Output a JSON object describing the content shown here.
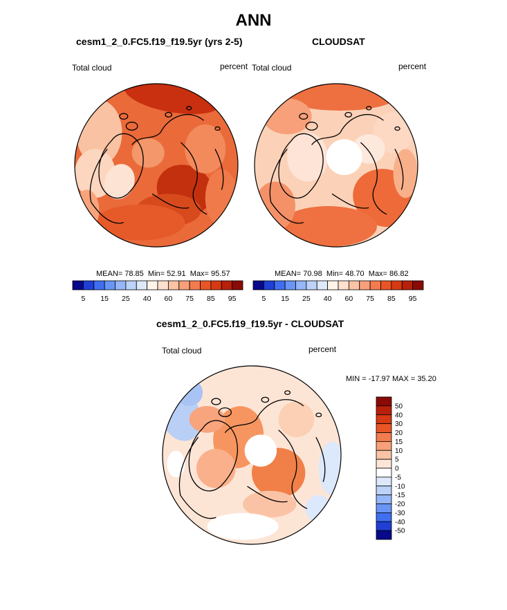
{
  "title": "ANN",
  "panels": [
    {
      "title": "cesm1_2_0.FC5.f19_f19.5yr (yrs 2-5)",
      "variable": "Total cloud",
      "units": "percent",
      "stats": {
        "MEAN": "78.85",
        "Min": "52.91",
        "Max": "95.57"
      }
    },
    {
      "title": "CLOUDSAT",
      "variable": "Total cloud",
      "units": "percent",
      "stats": {
        "MEAN": "70.98",
        "Min": "48.70",
        "Max": "86.82"
      }
    },
    {
      "title": "cesm1_2_0.FC5.f19_f19.5yr - CLOUDSAT",
      "variable": "Total cloud",
      "units": "percent",
      "stats_text": "MIN = -17.97 MAX =  35.20"
    }
  ],
  "chart_data": [
    {
      "type": "heatmap",
      "projection": "north polar stereographic",
      "title": "cesm1_2_0.FC5.f19_f19.5yr (yrs 2-5)",
      "variable": "Total cloud",
      "units": "percent",
      "mean": 78.85,
      "min": 52.91,
      "max": 95.57,
      "colorbar": {
        "orientation": "horizontal",
        "labels": [
          "5",
          "15",
          "25",
          "40",
          "60",
          "75",
          "85",
          "95"
        ],
        "levels": [
          5,
          10,
          15,
          20,
          25,
          30,
          40,
          50,
          60,
          70,
          75,
          80,
          85,
          90,
          95
        ],
        "colors": [
          "#08088a",
          "#1f3fd6",
          "#3f6ff0",
          "#6a95f7",
          "#95b6f8",
          "#bcd2f8",
          "#dde9fb",
          "#fff3ea",
          "#fde0ce",
          "#fbc3a6",
          "#f8a07a",
          "#f37c4f",
          "#ea5526",
          "#d73a12",
          "#b8200b",
          "#8a0a06"
        ]
      }
    },
    {
      "type": "heatmap",
      "projection": "north polar stereographic",
      "title": "CLOUDSAT",
      "variable": "Total cloud",
      "units": "percent",
      "mean": 70.98,
      "min": 48.7,
      "max": 86.82,
      "colorbar": {
        "orientation": "horizontal",
        "labels": [
          "5",
          "15",
          "25",
          "40",
          "60",
          "75",
          "85",
          "95"
        ],
        "levels": [
          5,
          10,
          15,
          20,
          25,
          30,
          40,
          50,
          60,
          70,
          75,
          80,
          85,
          90,
          95
        ],
        "colors": [
          "#08088a",
          "#1f3fd6",
          "#3f6ff0",
          "#6a95f7",
          "#95b6f8",
          "#bcd2f8",
          "#dde9fb",
          "#fff3ea",
          "#fde0ce",
          "#fbc3a6",
          "#f8a07a",
          "#f37c4f",
          "#ea5526",
          "#d73a12",
          "#b8200b",
          "#8a0a06"
        ]
      }
    },
    {
      "type": "heatmap",
      "projection": "north polar stereographic",
      "title": "cesm1_2_0.FC5.f19_f19.5yr - CLOUDSAT",
      "variable": "Total cloud",
      "units": "percent",
      "min": -17.97,
      "max": 35.2,
      "colorbar": {
        "orientation": "vertical",
        "labels": [
          "50",
          "40",
          "30",
          "20",
          "15",
          "10",
          "5",
          "0",
          "-5",
          "-10",
          "-15",
          "-20",
          "-30",
          "-40",
          "-50"
        ],
        "colors": [
          "#8a0a06",
          "#b8200b",
          "#d73a12",
          "#ea5526",
          "#f37c4f",
          "#f8a07a",
          "#fbc3a6",
          "#fde6d8",
          "#ffffff",
          "#dde9fb",
          "#bcd2f8",
          "#95b6f8",
          "#6a95f7",
          "#3f6ff0",
          "#1f3fd6",
          "#08088a"
        ]
      }
    }
  ]
}
